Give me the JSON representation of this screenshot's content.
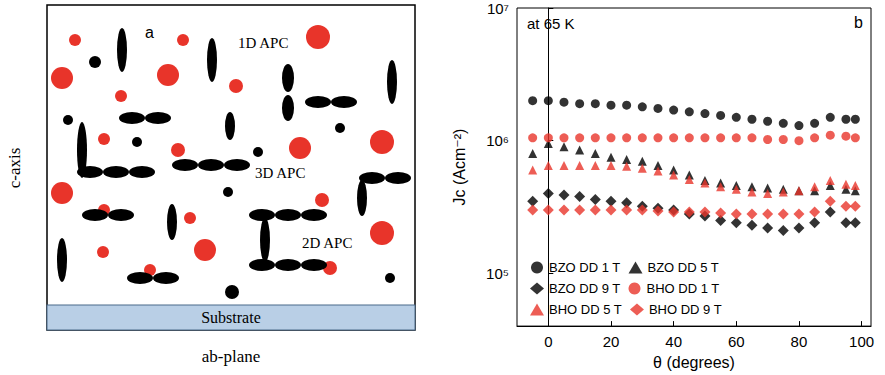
{
  "diagram": {
    "panel_label": "a",
    "axis_label": "c-axis",
    "bottom_label": "ab-plane",
    "substrate": "Substrate",
    "annotations": [
      "1D APC",
      "3D APC",
      "2D APC"
    ]
  },
  "chart_data": {
    "type": "scatter",
    "title": "at 65 K",
    "panel_label": "b",
    "xlabel": "θ (degrees)",
    "ylabel": "Jc (Acm⁻²)",
    "log": "y",
    "grid": false,
    "legend": "lower left",
    "xlim": [
      -10,
      103
    ],
    "xticks": [
      0,
      20,
      40,
      60,
      80,
      100
    ],
    "ylim": [
      40000,
      10000000
    ],
    "yticks": [
      {
        "value": 100000,
        "label": "10⁵"
      },
      {
        "value": 1000000,
        "label": "10⁶"
      },
      {
        "value": 10000000,
        "label": "10⁷"
      }
    ],
    "x": [
      -5,
      0,
      5,
      10,
      15,
      20,
      25,
      30,
      35,
      40,
      45,
      50,
      55,
      60,
      65,
      70,
      75,
      80,
      85,
      90,
      95,
      98
    ],
    "series": [
      {
        "name": "BZO DD 1 T",
        "color": "#000000",
        "marker": "circle",
        "values": [
          2000000,
          2000000,
          1950000,
          1900000,
          1900000,
          1850000,
          1850000,
          1800000,
          1750000,
          1700000,
          1650000,
          1600000,
          1550000,
          1500000,
          1450000,
          1400000,
          1350000,
          1300000,
          1350000,
          1500000,
          1450000,
          1450000
        ]
      },
      {
        "name": "BZO DD 5 T",
        "color": "#000000",
        "marker": "triangle",
        "values": [
          800000,
          950000,
          900000,
          850000,
          800000,
          750000,
          720000,
          700000,
          650000,
          600000,
          550000,
          500000,
          480000,
          460000,
          450000,
          440000,
          430000,
          420000,
          420000,
          460000,
          430000,
          420000
        ]
      },
      {
        "name": "BZO DD 9 T",
        "color": "#000000",
        "marker": "diamond",
        "values": [
          350000,
          400000,
          390000,
          380000,
          360000,
          350000,
          340000,
          320000,
          310000,
          300000,
          280000,
          270000,
          250000,
          240000,
          230000,
          220000,
          210000,
          220000,
          240000,
          290000,
          240000,
          240000
        ]
      },
      {
        "name": "BHO DD 1 T",
        "color": "#e8342a",
        "marker": "circle",
        "values": [
          1050000,
          1050000,
          1050000,
          1050000,
          1050000,
          1050000,
          1050000,
          1050000,
          1050000,
          1050000,
          1050000,
          1050000,
          1050000,
          1050000,
          1050000,
          1020000,
          1020000,
          1000000,
          1050000,
          1100000,
          1080000,
          1050000
        ]
      },
      {
        "name": "BHO DD 5 T",
        "color": "#e8342a",
        "marker": "triangle",
        "values": [
          600000,
          650000,
          650000,
          650000,
          650000,
          650000,
          640000,
          620000,
          590000,
          550000,
          510000,
          480000,
          450000,
          430000,
          410000,
          400000,
          410000,
          420000,
          450000,
          500000,
          470000,
          460000
        ]
      },
      {
        "name": "BHO DD 9 T",
        "color": "#e8342a",
        "marker": "diamond",
        "values": [
          300000,
          300000,
          300000,
          300000,
          300000,
          300000,
          300000,
          300000,
          295000,
          290000,
          290000,
          290000,
          285000,
          280000,
          280000,
          280000,
          280000,
          280000,
          290000,
          350000,
          320000,
          320000
        ]
      }
    ]
  }
}
